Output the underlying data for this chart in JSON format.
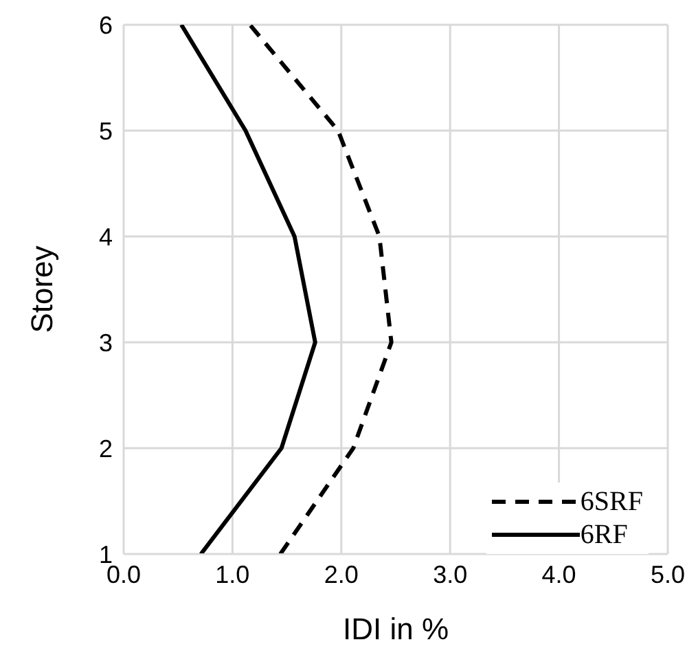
{
  "chart_data": {
    "type": "line",
    "xlabel": "IDI in %",
    "ylabel": "Storey",
    "series": [
      {
        "name": "6SRF",
        "color": "#000000",
        "line_style": "dashed",
        "x": [
          1.44,
          2.11,
          2.46,
          2.35,
          1.97,
          1.16
        ],
        "values": [
          1,
          2,
          3,
          4,
          5,
          6
        ]
      },
      {
        "name": "6RF",
        "color": "#000000",
        "line_style": "solid",
        "x": [
          0.71,
          1.45,
          1.76,
          1.57,
          1.12,
          0.53
        ],
        "values": [
          1,
          2,
          3,
          4,
          5,
          6
        ]
      }
    ],
    "xlim": [
      0,
      5
    ],
    "xticks": [
      {
        "value": 0,
        "label": "0.0"
      },
      {
        "value": 1,
        "label": "1.0"
      },
      {
        "value": 2,
        "label": "2.0"
      },
      {
        "value": 3,
        "label": "3.0"
      },
      {
        "value": 4,
        "label": "4.0"
      },
      {
        "value": 5,
        "label": "5.0"
      }
    ],
    "ylim": [
      1,
      6
    ],
    "yticks": [
      1,
      2,
      3,
      4,
      5,
      6
    ],
    "grid": true,
    "legend": "bottom right",
    "marker": "none"
  }
}
